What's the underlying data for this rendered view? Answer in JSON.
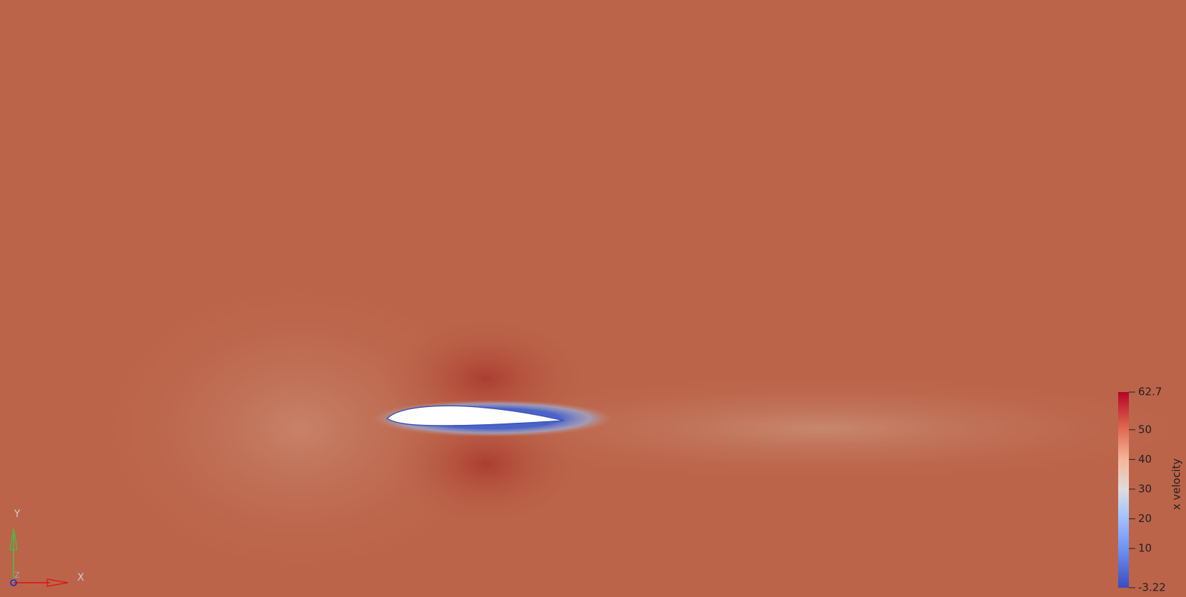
{
  "colorbar": {
    "title": "x velocity",
    "range": [
      -3.22,
      62.7
    ],
    "ticks": [
      62.7,
      50,
      40,
      30,
      20,
      10,
      -3.22
    ]
  },
  "axes": {
    "x": "X",
    "y": "Y",
    "z": "Z"
  }
}
